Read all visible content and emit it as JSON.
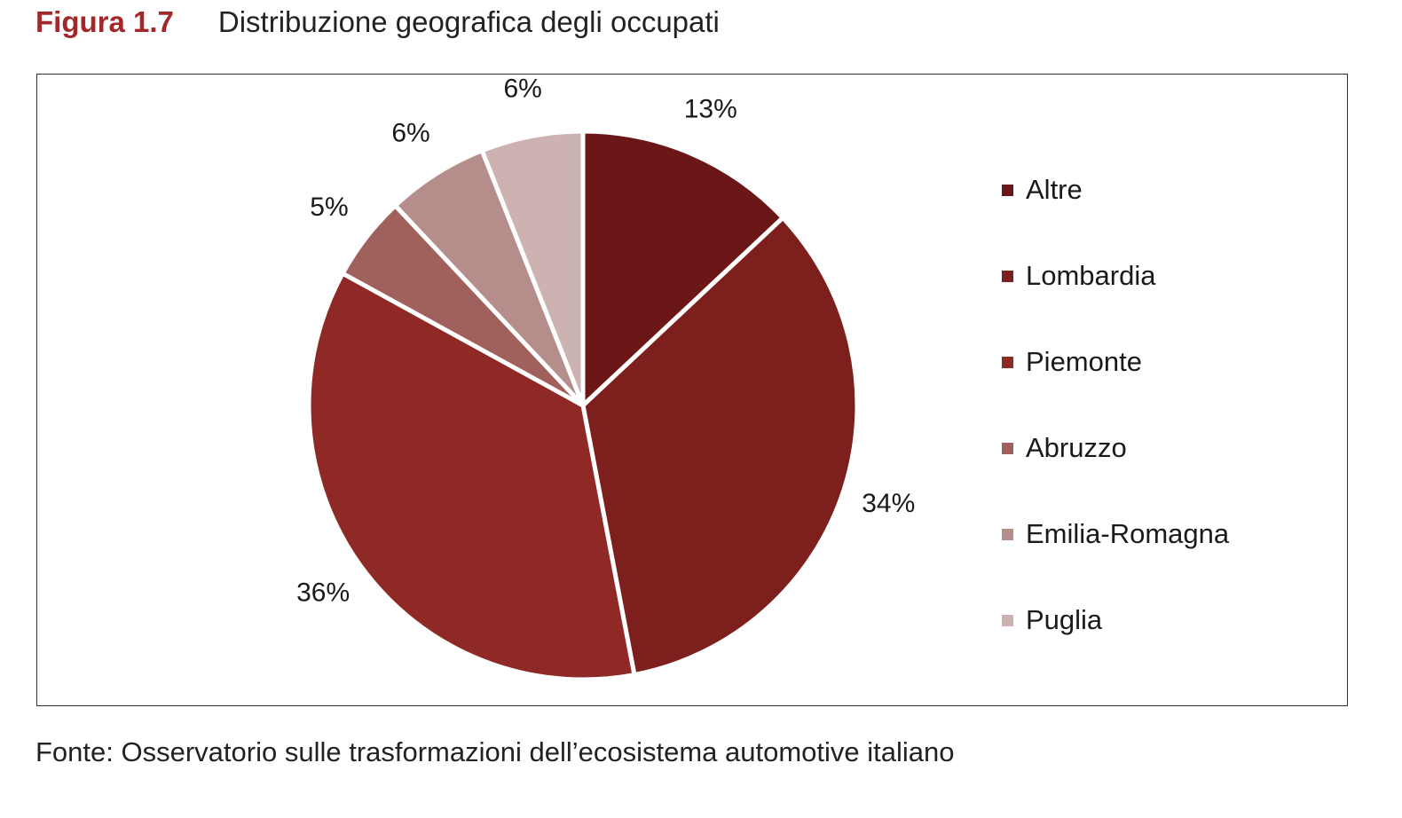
{
  "figure": {
    "number": "Figura 1.7",
    "title": "Distribuzione geografica degli occupati",
    "source": "Fonte: Osservatorio sulle trasformazioni dell’ecosistema automotive italiano"
  },
  "chart_data": {
    "type": "pie",
    "legend_position": "right",
    "categories": [
      "Altre",
      "Lombardia",
      "Piemonte",
      "Abruzzo",
      "Emilia-Romagna",
      "Puglia"
    ],
    "values": [
      13,
      34,
      36,
      5,
      6,
      6
    ],
    "labels": [
      "13%",
      "34%",
      "36%",
      "5%",
      "6%",
      "6%"
    ],
    "colors": [
      "#6b1717",
      "#7d1f1d",
      "#8e2926",
      "#a0605c",
      "#b58e8c",
      "#ccb2b1"
    ]
  }
}
